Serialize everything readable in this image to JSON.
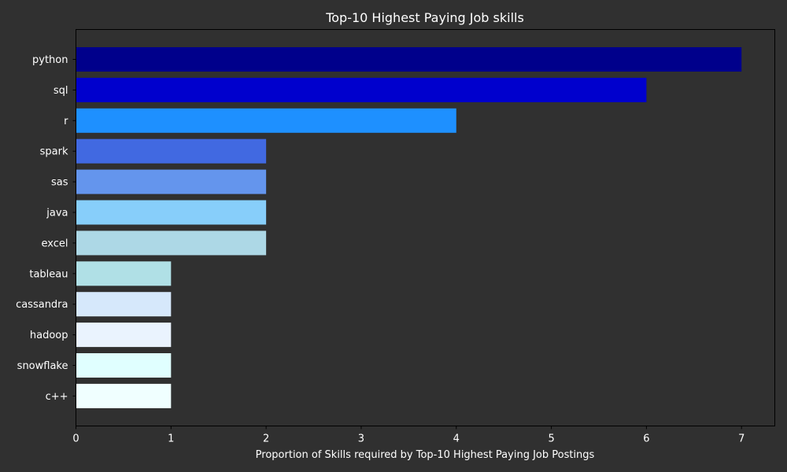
{
  "chart_data": {
    "type": "bar",
    "orientation": "horizontal",
    "title": "Top-10 Highest Paying Job skills",
    "xlabel": "Proportion of Skills required by Top-10 Highest Paying Job Postings",
    "ylabel": "",
    "categories": [
      "python",
      "sql",
      "r",
      "spark",
      "sas",
      "java",
      "excel",
      "tableau",
      "cassandra",
      "hadoop",
      "snowflake",
      "c++"
    ],
    "values": [
      7,
      6,
      4,
      2,
      2,
      2,
      2,
      1,
      1,
      1,
      1,
      1
    ],
    "colors": [
      "#00008b",
      "#0000cd",
      "#1e90ff",
      "#4169e1",
      "#6495ed",
      "#87cefa",
      "#add8e6",
      "#b0e0e6",
      "#d6e8fb",
      "#eaf3fe",
      "#e0ffff",
      "#f0ffff"
    ],
    "xlim": [
      0,
      7.35
    ],
    "xticks": [
      0,
      1,
      2,
      3,
      4,
      5,
      6,
      7
    ],
    "grid": false,
    "background": "#303030",
    "text_color": "#ffffff",
    "axis_color": "#000000"
  }
}
